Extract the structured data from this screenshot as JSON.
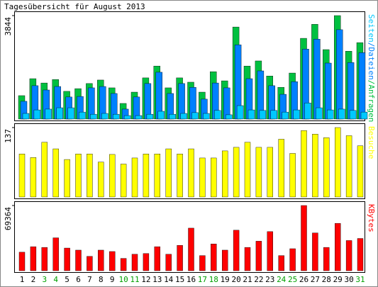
{
  "title": "Tagesübersicht für August 2013",
  "chart_data": [
    {
      "type": "grouped-bar",
      "legend_separator": "/",
      "ylim": [
        0,
        3844
      ],
      "yticks": [
        3844
      ],
      "series": [
        {
          "name": "Anfragen",
          "color": "#00c040",
          "values": [
            870,
            1500,
            1340,
            1470,
            1030,
            1130,
            1320,
            1450,
            1160,
            580,
            1000,
            1530,
            1970,
            1160,
            1530,
            1370,
            1000,
            1760,
            1420,
            3420,
            1970,
            2160,
            1600,
            1180,
            1710,
            3000,
            3520,
            2580,
            3844,
            2520,
            2840
          ]
        },
        {
          "name": "Dateien",
          "color": "#0080ff",
          "values": [
            660,
            1240,
            1080,
            1210,
            820,
            840,
            1160,
            1210,
            950,
            370,
            820,
            1320,
            1740,
            950,
            1320,
            1180,
            740,
            1340,
            1160,
            2760,
            1500,
            1790,
            1240,
            920,
            1390,
            2600,
            2970,
            2080,
            3320,
            2100,
            2470
          ]
        },
        {
          "name": "Seiten",
          "color": "#00c8ff",
          "values": [
            210,
            340,
            370,
            420,
            420,
            260,
            180,
            210,
            180,
            130,
            130,
            180,
            290,
            180,
            210,
            240,
            210,
            320,
            160,
            500,
            340,
            320,
            320,
            260,
            340,
            600,
            420,
            340,
            370,
            320,
            260
          ]
        }
      ]
    },
    {
      "type": "bar",
      "ylim": [
        0,
        137
      ],
      "yticks": [
        137
      ],
      "series": [
        {
          "name": "Besuche",
          "color": "#ffff00",
          "values": [
            85,
            78,
            108,
            95,
            74,
            85,
            85,
            69,
            84,
            65,
            77,
            85,
            85,
            95,
            85,
            95,
            77,
            77,
            91,
            98,
            108,
            98,
            98,
            114,
            86,
            131,
            124,
            117,
            137,
            121,
            101
          ]
        }
      ]
    },
    {
      "type": "bar",
      "ylim": [
        0,
        69364
      ],
      "yticks": [
        69364
      ],
      "categories": [
        "1",
        "2",
        "3",
        "4",
        "5",
        "6",
        "7",
        "8",
        "9",
        "10",
        "11",
        "12",
        "13",
        "14",
        "15",
        "16",
        "17",
        "18",
        "19",
        "20",
        "21",
        "22",
        "23",
        "24",
        "25",
        "26",
        "27",
        "28",
        "29",
        "30",
        "31"
      ],
      "category_colors": [
        "#000",
        "#000",
        "#00a000",
        "#00a000",
        "#000",
        "#000",
        "#000",
        "#000",
        "#000",
        "#00a000",
        "#00a000",
        "#000",
        "#000",
        "#000",
        "#000",
        "#000",
        "#00a000",
        "#00a000",
        "#000",
        "#000",
        "#000",
        "#000",
        "#000",
        "#00a000",
        "#00a000",
        "#000",
        "#000",
        "#000",
        "#000",
        "#000",
        "#00a000"
      ],
      "series": [
        {
          "name": "KBytes",
          "color": "#ff0000",
          "values": [
            19700,
            25550,
            24800,
            35000,
            24100,
            21900,
            15300,
            21900,
            20400,
            13100,
            17500,
            18300,
            25550,
            17500,
            27000,
            45300,
            16100,
            28500,
            21900,
            43100,
            24800,
            31400,
            41600,
            16100,
            23400,
            69364,
            40200,
            24800,
            50400,
            32100,
            34300
          ]
        }
      ]
    }
  ]
}
